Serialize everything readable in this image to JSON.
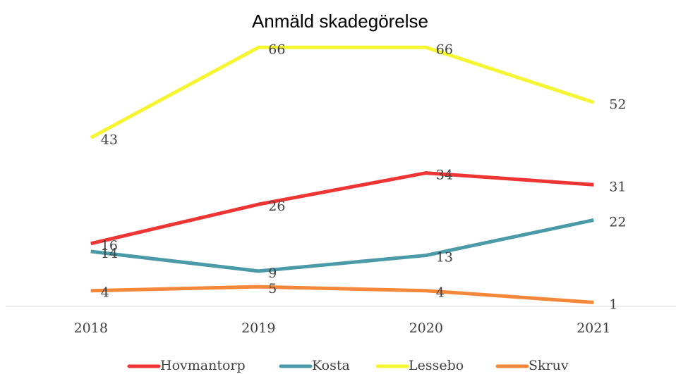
{
  "chart_data": {
    "type": "line",
    "title": "Anmäld skadegörelse",
    "categories": [
      "2018",
      "2019",
      "2020",
      "2021"
    ],
    "series": [
      {
        "name": "Hovmantorp",
        "color": "#ef3434",
        "values": [
          16,
          26,
          34,
          31
        ]
      },
      {
        "name": "Kosta",
        "color": "#4a9aa8",
        "values": [
          14,
          9,
          13,
          22
        ]
      },
      {
        "name": "Lessebo",
        "color": "#f5f532",
        "values": [
          43,
          66,
          66,
          52
        ]
      },
      {
        "name": "Skruv",
        "color": "#f5873a",
        "values": [
          4,
          5,
          4,
          1
        ]
      }
    ],
    "ylim": [
      0,
      70
    ],
    "legend": "bottom"
  }
}
